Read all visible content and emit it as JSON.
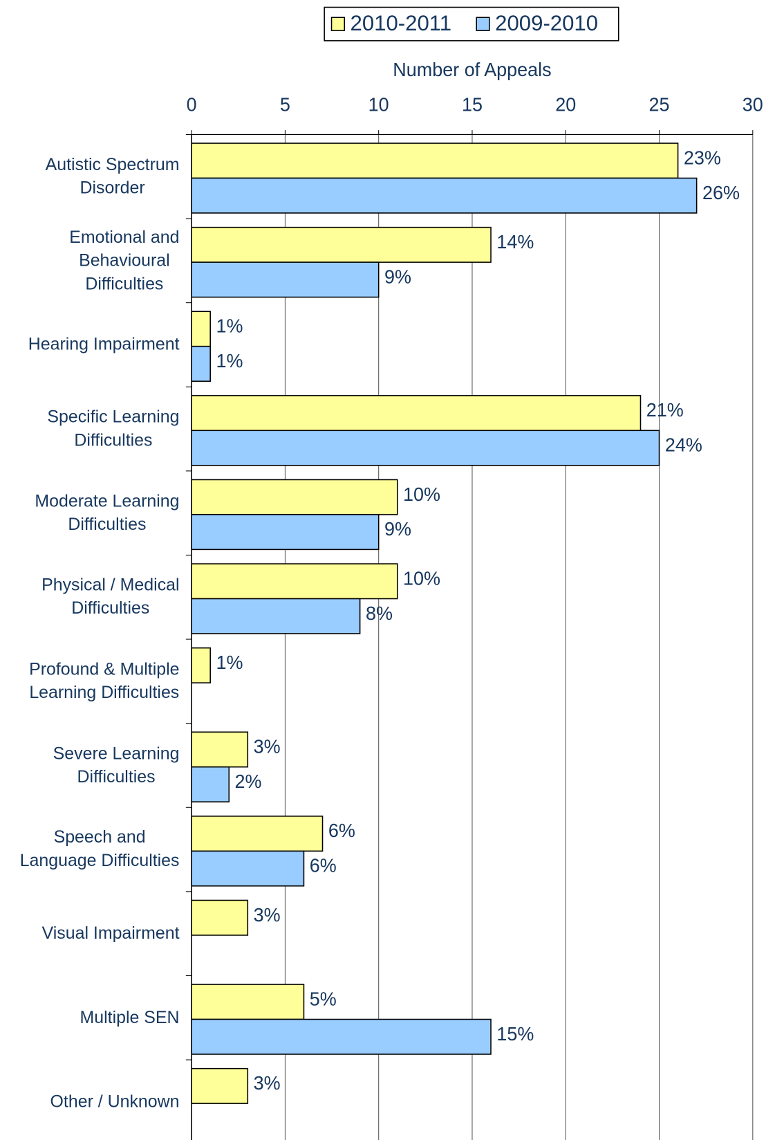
{
  "chart_data": {
    "type": "barh",
    "x_label": "Number of Appeals",
    "categories": [
      "Autistic Spectrum\nDisorder",
      "Emotional and\nBehavioural\nDifficulties",
      "Hearing Impairment",
      "Specific Learning\nDifficulties",
      "Moderate Learning\nDifficulties",
      "Physical / Medical\nDifficulties",
      "Profound & Multiple\nLearning Difficulties",
      "Severe Learning\nDifficulties",
      "Speech and\nLanguage Difficulties",
      "Visual Impairment",
      "Multiple SEN",
      "Other / Unknown"
    ],
    "series": [
      {
        "name": "2010-2011",
        "color": "#ffff99",
        "values": [
          26,
          16,
          1,
          24,
          11,
          11,
          1,
          3,
          7,
          3,
          6,
          3
        ],
        "value_labels": [
          "23%",
          "14%",
          "1%",
          "21%",
          "10%",
          "10%",
          "1%",
          "3%",
          "6%",
          "3%",
          "5%",
          "3%"
        ]
      },
      {
        "name": "2009-2010",
        "color": "#99ccff",
        "values": [
          27,
          10,
          1,
          25,
          10,
          9,
          null,
          2,
          6,
          null,
          16,
          null
        ],
        "value_labels": [
          "26%",
          "9%",
          "1%",
          "24%",
          "9%",
          "8%",
          null,
          "2%",
          "6%",
          null,
          "15%",
          null
        ]
      }
    ],
    "xlim": [
      0,
      30
    ],
    "xticks": [
      0,
      5,
      10,
      15,
      20,
      25,
      30
    ],
    "grid": true,
    "legend": "top"
  }
}
